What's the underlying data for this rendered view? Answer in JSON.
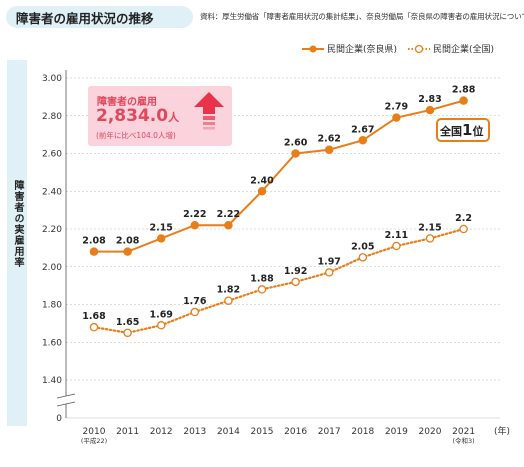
{
  "header": {
    "title": "障害者の雇用状況の推移",
    "source": "資料：厚生労働省「障害者雇用状況の集計結果」、奈良労働局「奈良県の障害者の雇用状況について」"
  },
  "callout": {
    "title": "障害者の雇用",
    "value": "2,834.0",
    "unit": "人",
    "note": "(前年に比べ104.0人増)"
  },
  "rank_badge": {
    "prefix": "全国",
    "rank": "1",
    "suffix": "位"
  },
  "colors": {
    "nara": "#e87e1a",
    "national": "#e87e1a",
    "callout_text": "#e0485d",
    "panel": "#dff0f7"
  },
  "chart_data": {
    "type": "line",
    "title": "障害者の雇用状況の推移",
    "ylabel": "障害者の実雇用率",
    "xlabel": "(年)",
    "x": [
      "2010",
      "2011",
      "2012",
      "2013",
      "2014",
      "2015",
      "2016",
      "2017",
      "2018",
      "2019",
      "2020",
      "2021"
    ],
    "x_sublabels": {
      "2010": "(平成22)",
      "2021": "(令和3)"
    },
    "yticks": [
      "3.00",
      "2.80",
      "2.60",
      "2.40",
      "2.20",
      "2.00",
      "1.80",
      "1.60",
      "1.40",
      "0"
    ],
    "ylim": [
      1.4,
      3.0
    ],
    "y_axis_break": true,
    "grid": true,
    "legend_position": "top-right",
    "series": [
      {
        "name": "民間企業(奈良県)",
        "style": "solid",
        "values": [
          2.08,
          2.08,
          2.15,
          2.22,
          2.22,
          2.4,
          2.6,
          2.62,
          2.67,
          2.79,
          2.83,
          2.88
        ],
        "labels": [
          "2.08",
          "2.08",
          "2.15",
          "2.22",
          "2.22",
          "2.40",
          "2.60",
          "2.62",
          "2.67",
          "2.79",
          "2.83",
          "2.88"
        ]
      },
      {
        "name": "民間企業(全国)",
        "style": "dotted",
        "values": [
          1.68,
          1.65,
          1.69,
          1.76,
          1.82,
          1.88,
          1.92,
          1.97,
          2.05,
          2.11,
          2.15,
          2.2
        ],
        "labels": [
          "1.68",
          "1.65",
          "1.69",
          "1.76",
          "1.82",
          "1.88",
          "1.92",
          "1.97",
          "2.05",
          "2.11",
          "2.15",
          "2.2"
        ]
      }
    ]
  }
}
